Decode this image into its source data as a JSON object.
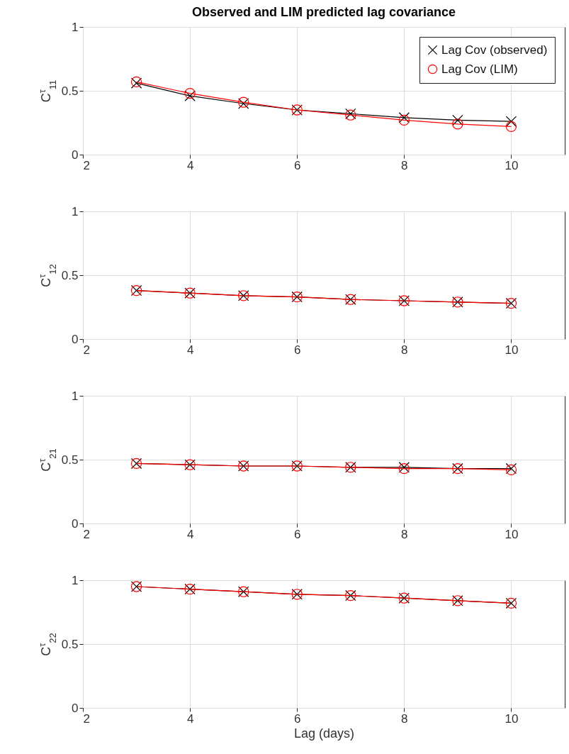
{
  "chart_data": [
    {
      "type": "line",
      "title": "Observed and LIM predicted lag covariance",
      "ylabel": "C$^{τ}$$_{11}$",
      "x": [
        3,
        4,
        5,
        6,
        7,
        8,
        9,
        10
      ],
      "xlim": [
        2,
        11
      ],
      "xticks": [
        2,
        4,
        6,
        8,
        10
      ],
      "ylim": [
        0,
        1
      ],
      "yticks": [
        0,
        0.5,
        1
      ],
      "grid": true,
      "legend": "top right",
      "series": [
        {
          "name": "Lag Cov (observed)",
          "color": "#000000",
          "marker": "cross",
          "values": [
            0.56,
            0.46,
            0.4,
            0.35,
            0.32,
            0.29,
            0.27,
            0.26
          ]
        },
        {
          "name": "Lag Cov (LIM)",
          "color": "#ff0000",
          "marker": "circle",
          "values": [
            0.57,
            0.48,
            0.41,
            0.35,
            0.31,
            0.27,
            0.24,
            0.22
          ]
        }
      ]
    },
    {
      "type": "line",
      "ylabel": "C$^{τ}$$_{12}$",
      "x": [
        3,
        4,
        5,
        6,
        7,
        8,
        9,
        10
      ],
      "xlim": [
        2,
        11
      ],
      "xticks": [
        2,
        4,
        6,
        8,
        10
      ],
      "ylim": [
        0,
        1
      ],
      "yticks": [
        0,
        0.5,
        1
      ],
      "grid": true,
      "series": [
        {
          "color": "#000000",
          "marker": "cross",
          "values": [
            0.38,
            0.36,
            0.34,
            0.33,
            0.31,
            0.3,
            0.29,
            0.28
          ]
        },
        {
          "color": "#ff0000",
          "marker": "circle",
          "values": [
            0.38,
            0.36,
            0.34,
            0.33,
            0.31,
            0.3,
            0.29,
            0.28
          ]
        }
      ]
    },
    {
      "type": "line",
      "ylabel": "C$^{τ}$$_{21}$",
      "x": [
        3,
        4,
        5,
        6,
        7,
        8,
        9,
        10
      ],
      "xlim": [
        2,
        11
      ],
      "xticks": [
        2,
        4,
        6,
        8,
        10
      ],
      "ylim": [
        0,
        1
      ],
      "yticks": [
        0,
        0.5,
        1
      ],
      "grid": true,
      "series": [
        {
          "color": "#000000",
          "marker": "cross",
          "values": [
            0.47,
            0.46,
            0.45,
            0.45,
            0.44,
            0.44,
            0.43,
            0.43
          ]
        },
        {
          "color": "#ff0000",
          "marker": "circle",
          "values": [
            0.47,
            0.46,
            0.45,
            0.45,
            0.44,
            0.43,
            0.43,
            0.42
          ]
        }
      ]
    },
    {
      "type": "line",
      "ylabel": "C$^{τ}$$_{22}$",
      "xlabel": "Lag (days)",
      "x": [
        3,
        4,
        5,
        6,
        7,
        8,
        9,
        10
      ],
      "xlim": [
        2,
        11
      ],
      "xticks": [
        2,
        4,
        6,
        8,
        10
      ],
      "ylim": [
        0,
        1
      ],
      "yticks": [
        0,
        0.5,
        1
      ],
      "grid": true,
      "series": [
        {
          "color": "#000000",
          "marker": "cross",
          "values": [
            0.95,
            0.93,
            0.91,
            0.89,
            0.88,
            0.86,
            0.84,
            0.82
          ]
        },
        {
          "color": "#ff0000",
          "marker": "circle",
          "values": [
            0.95,
            0.93,
            0.91,
            0.89,
            0.88,
            0.86,
            0.84,
            0.82
          ]
        }
      ]
    }
  ]
}
